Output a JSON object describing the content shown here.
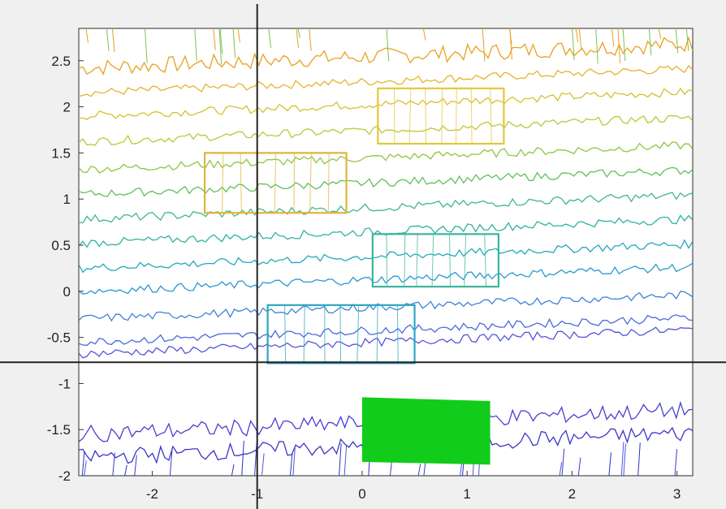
{
  "chart_data": {
    "type": "contour",
    "title": "",
    "xlabel": "",
    "ylabel": "",
    "xlim": [
      -2.7,
      3.15
    ],
    "ylim": [
      -2.0,
      2.85
    ],
    "x_ticks": [
      -2,
      -1,
      0,
      1,
      2,
      3
    ],
    "y_ticks": [
      -2,
      -1.5,
      -1,
      -0.5,
      0,
      0.5,
      1,
      1.5,
      2,
      2.5
    ],
    "x_tick_labels": [
      "-2",
      "-1",
      "0",
      "1",
      "2",
      "3"
    ],
    "y_tick_labels": [
      "-2",
      "-1.5",
      "-1",
      "-0.5",
      "0",
      "0.5",
      "1",
      "1.5",
      "2",
      "2.5"
    ],
    "grid": false,
    "crosshair": {
      "x": -1.0,
      "y": -0.77
    },
    "contour_levels": [
      {
        "y": 2.42,
        "color": "#e8a020"
      },
      {
        "y": 2.15,
        "color": "#e6b32a"
      },
      {
        "y": 1.9,
        "color": "#d6c02e"
      },
      {
        "y": 1.62,
        "color": "#b8c83a"
      },
      {
        "y": 1.32,
        "color": "#8fc540"
      },
      {
        "y": 1.05,
        "color": "#5fbf5a"
      },
      {
        "y": 0.78,
        "color": "#40b881"
      },
      {
        "y": 0.52,
        "color": "#2fb2a0"
      },
      {
        "y": 0.25,
        "color": "#22a9bc"
      },
      {
        "y": 0.0,
        "color": "#2a98d0"
      },
      {
        "y": -0.3,
        "color": "#3d82d8"
      },
      {
        "y": -0.55,
        "color": "#4a6adb"
      },
      {
        "y": -0.68,
        "color": "#5555d8"
      },
      {
        "y": -1.55,
        "color": "#4a3fd0"
      },
      {
        "y": -1.8,
        "color": "#3d34c8"
      }
    ],
    "outlined_regions": [
      {
        "x": [
          0.15,
          1.35
        ],
        "y": [
          1.6,
          2.2
        ],
        "color": "#e3c83a"
      },
      {
        "x": [
          -1.5,
          -0.15
        ],
        "y": [
          0.85,
          1.5
        ],
        "color": "#e0b43a"
      },
      {
        "x": [
          0.1,
          1.3
        ],
        "y": [
          0.05,
          0.62
        ],
        "color": "#3bb59a"
      },
      {
        "x": [
          -0.9,
          0.5
        ],
        "y": [
          -0.78,
          -0.15
        ],
        "color": "#2aa7c2"
      }
    ],
    "filled_region": {
      "x": [
        0.0,
        1.22
      ],
      "y": [
        -1.88,
        -1.15
      ],
      "color": "#11cc1b"
    }
  }
}
